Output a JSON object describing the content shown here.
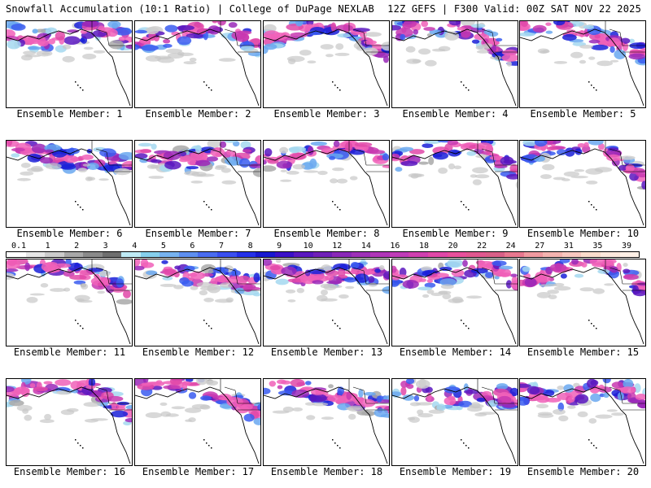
{
  "header": {
    "left": "Snowfall Accumulation (10:1 Ratio) | College of DuPage NEXLAB",
    "right": "12Z GEFS | F300 Valid: 00Z SAT NOV 22 2025"
  },
  "panels": [
    {
      "caption": "Ensemble Member: 1"
    },
    {
      "caption": "Ensemble Member: 2"
    },
    {
      "caption": "Ensemble Member: 3"
    },
    {
      "caption": "Ensemble Member: 4"
    },
    {
      "caption": "Ensemble Member: 5"
    },
    {
      "caption": "Ensemble Member: 6"
    },
    {
      "caption": "Ensemble Member: 7"
    },
    {
      "caption": "Ensemble Member: 8"
    },
    {
      "caption": "Ensemble Member: 9"
    },
    {
      "caption": "Ensemble Member: 10"
    },
    {
      "caption": "Ensemble Member: 11"
    },
    {
      "caption": "Ensemble Member: 12"
    },
    {
      "caption": "Ensemble Member: 13"
    },
    {
      "caption": "Ensemble Member: 14"
    },
    {
      "caption": "Ensemble Member: 15"
    },
    {
      "caption": "Ensemble Member: 16"
    },
    {
      "caption": "Ensemble Member: 17"
    },
    {
      "caption": "Ensemble Member: 18"
    },
    {
      "caption": "Ensemble Member: 19"
    },
    {
      "caption": "Ensemble Member: 20"
    }
  ],
  "legend": {
    "labels": [
      "0.1",
      "1",
      "2",
      "3",
      "4",
      "5",
      "6",
      "7",
      "8",
      "9",
      "10",
      "12",
      "14",
      "16",
      "18",
      "20",
      "22",
      "24",
      "27",
      "31",
      "35",
      "39"
    ],
    "colors": [
      "#ffffff",
      "#e6e6e6",
      "#cccccc",
      "#a8a8a8",
      "#8a8a8a",
      "#6e6e6e",
      "#bfeaf5",
      "#86d0ec",
      "#77b3f0",
      "#5e8ff0",
      "#4a6cf0",
      "#3a4ff0",
      "#2430e8",
      "#1818d0",
      "#3a10c8",
      "#5a18c0",
      "#7020b8",
      "#8a28b8",
      "#9e30b8",
      "#b036b8",
      "#c03cb8",
      "#d040b0",
      "#e048a8",
      "#e8509c",
      "#e05890",
      "#d86088",
      "#e87890",
      "#f09aa0",
      "#f4b4b0",
      "#f8c8c0",
      "#fadccc",
      "#fce8dc",
      "#fef0e6"
    ]
  }
}
